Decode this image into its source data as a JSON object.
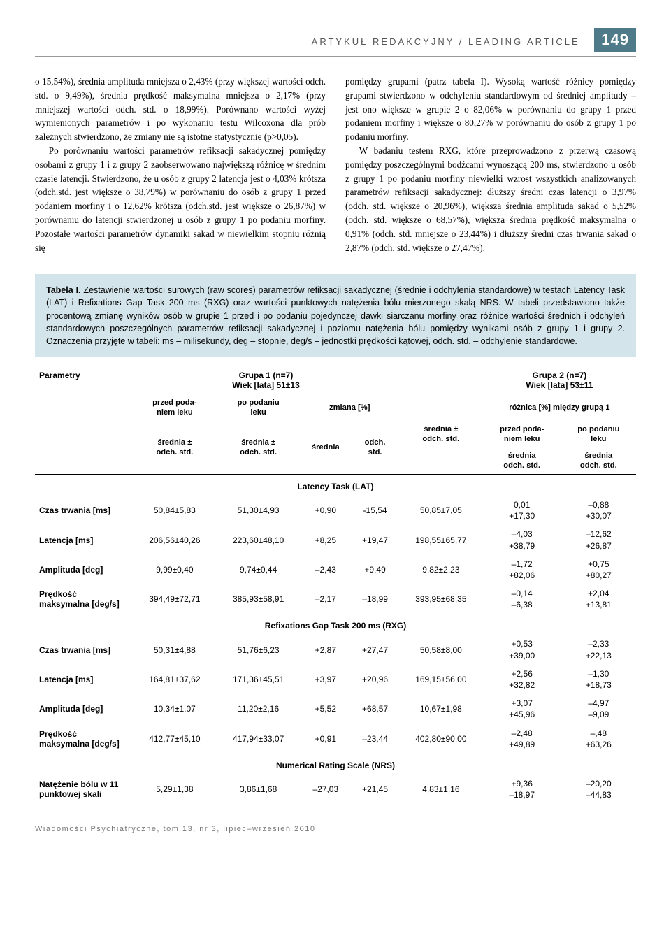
{
  "header": {
    "section_label": "ARTYKUŁ REDAKCYJNY / LEADING ARTICLE",
    "page_number": "149"
  },
  "body": {
    "col1": "o 15,54%), średnia amplituda mniejsza o 2,43% (przy większej wartości odch. std. o 9,49%), średnia prędkość maksymalna mniejsza o 2,17% (przy mniejszej wartości odch. std. o 18,99%). Porównano wartości wyżej wymienionych parametrów i po wykonaniu testu Wilcoxona dla prób zależnych stwierdzono, że zmiany nie są istotne statystycznie (p>0,05).",
    "col1_p2": "Po porównaniu wartości parametrów refiksacji sakadycznej pomiędzy osobami z grupy 1 i z grupy 2 zaobserwowano największą różnicę w średnim czasie latencji. Stwierdzono, że u osób z grupy 2 latencja jest o 4,03% krótsza (odch.std. jest większe o 38,79%) w porównaniu do osób z grupy 1 przed podaniem morfiny i o 12,62% krótsza (odch.std. jest większe o 26,87%) w porównaniu do latencji stwierdzonej u osób z grupy 1 po podaniu morfiny. Pozostałe wartości parametrów dynamiki sakad w niewielkim stopniu różnią się",
    "col2": "pomiędzy grupami (patrz tabela I). Wysoką wartość różnicy pomiędzy grupami stwierdzono w odchyleniu standardowym od średniej amplitudy – jest ono większe w grupie 2 o 82,06% w porównaniu do grupy 1 przed podaniem morfiny i większe o 80,27% w porównaniu do osób z grupy 1 po podaniu morfiny.",
    "col2_p2": "W badaniu testem RXG, które przeprowadzono z przerwą czasową pomiędzy poszczególnymi bodźcami wynoszącą 200 ms, stwierdzono u osób z grupy 1 po podaniu morfiny niewielki wzrost wszystkich analizowanych parametrów refiksacji sakadycznej: dłuższy średni czas latencji o 3,97% (odch. std. większe o 20,96%), większa średnia amplituda sakad o 5,52% (odch. std. większe o 68,57%), większa średnia prędkość maksymalna o 0,91% (odch. std. mniejsze o 23,44%) i dłuższy średni czas trwania sakad o 2,87% (odch. std. większe o 27,47%)."
  },
  "table_caption": {
    "lead": "Tabela I.",
    "text": " Zestawienie wartości surowych (raw scores) parametrów refiksacji sakadycznej (średnie i odchylenia standardowe) w testach Latency Task (LAT) i Refixations Gap Task 200 ms (RXG) oraz wartości punktowych natężenia bólu mierzonego skalą NRS. W tabeli przedstawiono także procentową zmianę wyników osób w grupie 1 przed i po podaniu pojedynczej dawki siarczanu morfiny oraz różnice wartości średnich i odchyleń standardowych poszczególnych parametrów refiksacji sakadycznej i poziomu natężenia bólu pomiędzy wynikami osób z grupy 1 i grupy 2. Oznaczenia przyjęte w tabeli: ms – milisekundy, deg – stopnie, deg/s – jednostki prędkości kątowej, odch. std. – odchylenie standardowe."
  },
  "table": {
    "headers": {
      "param": "Parametry",
      "group1": "Grupa 1 (n=7)",
      "group1_age": "Wiek [lata] 51±13",
      "group2": "Grupa 2 (n=7)",
      "group2_age": "Wiek [lata] 53±11",
      "before": "przed poda-\nniem leku",
      "after": "po podaniu\nleku",
      "change": "zmiana [%]",
      "mean_sd": "średnia ±\nodch. std.",
      "mean": "średnia",
      "sd": "odch.\nstd.",
      "mean_sd2": "średnia ±\nodch. std.",
      "diff": "różnica [%] między grupą 1",
      "diff_before": "przed poda-\nniem leku",
      "diff_after": "po podaniu\nleku",
      "mean_sd3": "średnia\nodch. std.",
      "mean_sd4": "średnia\nodch. std."
    },
    "sections": {
      "lat": "Latency Task (LAT)",
      "rxg": "Refixations Gap Task 200 ms (RXG)",
      "nrs": "Numerical Rating Scale (NRS)"
    },
    "rows": {
      "lat": [
        {
          "param": "Czas trwania [ms]",
          "before": "50,84±5,83",
          "after": "51,30±4,93",
          "chg_m": "+0,90",
          "chg_sd": "-15,54",
          "g2": "50,85±7,05",
          "diff_b": "0,01\n+17,30",
          "diff_a": "–0,88\n+30,07"
        },
        {
          "param": "Latencja [ms]",
          "before": "206,56±40,26",
          "after": "223,60±48,10",
          "chg_m": "+8,25",
          "chg_sd": "+19,47",
          "g2": "198,55±65,77",
          "diff_b": "–4,03\n+38,79",
          "diff_a": "–12,62\n+26,87"
        },
        {
          "param": "Amplituda [deg]",
          "before": "9,99±0,40",
          "after": "9,74±0,44",
          "chg_m": "–2,43",
          "chg_sd": "+9,49",
          "g2": "9,82±2,23",
          "diff_b": "–1,72\n+82,06",
          "diff_a": "+0,75\n+80,27"
        },
        {
          "param": "Prędkość\nmaksymalna [deg/s]",
          "before": "394,49±72,71",
          "after": "385,93±58,91",
          "chg_m": "–2,17",
          "chg_sd": "–18,99",
          "g2": "393,95±68,35",
          "diff_b": "–0,14\n–6,38",
          "diff_a": "+2,04\n+13,81"
        }
      ],
      "rxg": [
        {
          "param": "Czas trwania [ms]",
          "before": "50,31±4,88",
          "after": "51,76±6,23",
          "chg_m": "+2,87",
          "chg_sd": "+27,47",
          "g2": "50,58±8,00",
          "diff_b": "+0,53\n+39,00",
          "diff_a": "–2,33\n+22,13"
        },
        {
          "param": "Latencja [ms]",
          "before": "164,81±37,62",
          "after": "171,36±45,51",
          "chg_m": "+3,97",
          "chg_sd": "+20,96",
          "g2": "169,15±56,00",
          "diff_b": "+2,56\n+32,82",
          "diff_a": "–1,30\n+18,73"
        },
        {
          "param": "Amplituda [deg]",
          "before": "10,34±1,07",
          "after": "11,20±2,16",
          "chg_m": "+5,52",
          "chg_sd": "+68,57",
          "g2": "10,67±1,98",
          "diff_b": "+3,07\n+45,96",
          "diff_a": "–4,97\n–9,09"
        },
        {
          "param": "Prędkość\nmaksymalna [deg/s]",
          "before": "412,77±45,10",
          "after": "417,94±33,07",
          "chg_m": "+0,91",
          "chg_sd": "–23,44",
          "g2": "402,80±90,00",
          "diff_b": "–2,48\n+49,89",
          "diff_a": "–,48\n+63,26"
        }
      ],
      "nrs": [
        {
          "param": "Natężenie bólu w 11\npunktowej skali",
          "before": "5,29±1,38",
          "after": "3,86±1,68",
          "chg_m": "–27,03",
          "chg_sd": "+21,45",
          "g2": "4,83±1,16",
          "diff_b": "+9,36\n–18,97",
          "diff_a": "–20,20\n–44,83"
        }
      ]
    }
  },
  "footer": "Wiadomości Psychiatryczne, tom 13, nr 3, lipiec–wrzesień 2010",
  "colors": {
    "header_badge_bg": "#4f7a8a",
    "caption_bg": "#d3e4ea",
    "text": "#000000"
  }
}
